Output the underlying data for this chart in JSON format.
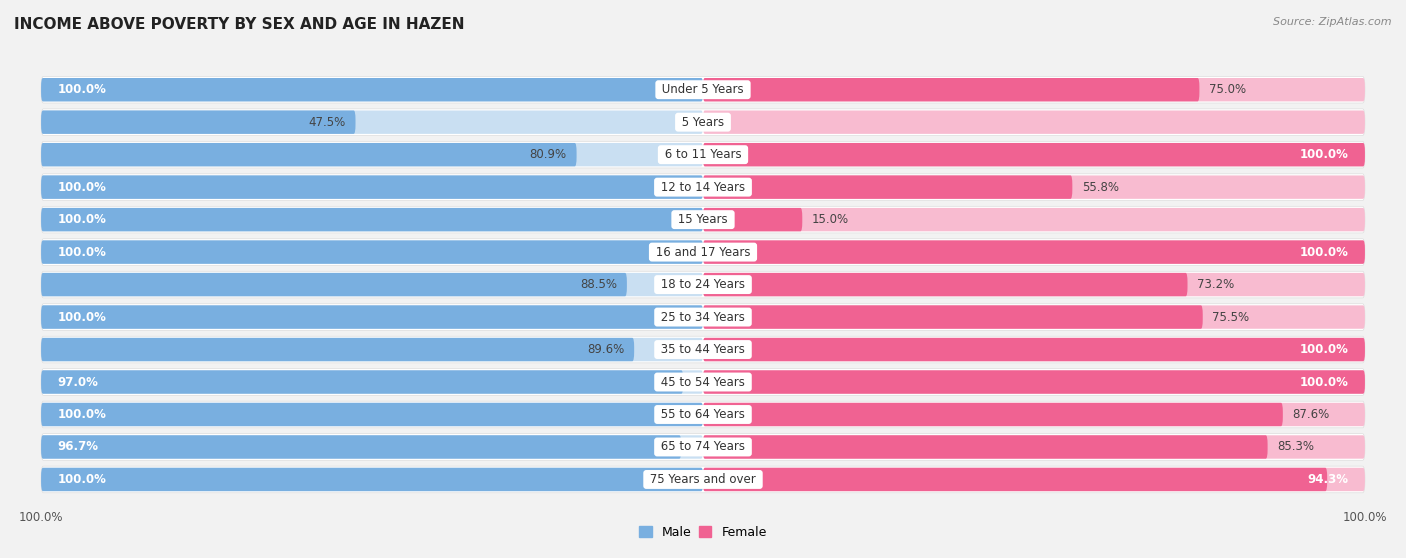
{
  "title": "INCOME ABOVE POVERTY BY SEX AND AGE IN HAZEN",
  "source": "Source: ZipAtlas.com",
  "categories": [
    "Under 5 Years",
    "5 Years",
    "6 to 11 Years",
    "12 to 14 Years",
    "15 Years",
    "16 and 17 Years",
    "18 to 24 Years",
    "25 to 34 Years",
    "35 to 44 Years",
    "45 to 54 Years",
    "55 to 64 Years",
    "65 to 74 Years",
    "75 Years and over"
  ],
  "male_values": [
    100.0,
    47.5,
    80.9,
    100.0,
    100.0,
    100.0,
    88.5,
    100.0,
    89.6,
    97.0,
    100.0,
    96.7,
    100.0
  ],
  "female_values": [
    75.0,
    0.0,
    100.0,
    55.8,
    15.0,
    100.0,
    73.2,
    75.5,
    100.0,
    100.0,
    87.6,
    85.3,
    94.3
  ],
  "male_color": "#79afe0",
  "female_color": "#f06292",
  "male_color_light": "#c9dff2",
  "female_color_light": "#f8bbd0",
  "row_bg_color": "#ffffff",
  "page_bg_color": "#f2f2f2",
  "max_value": 100.0,
  "title_fontsize": 11,
  "source_fontsize": 8,
  "value_fontsize": 8.5,
  "category_fontsize": 8.5,
  "legend_fontsize": 9
}
